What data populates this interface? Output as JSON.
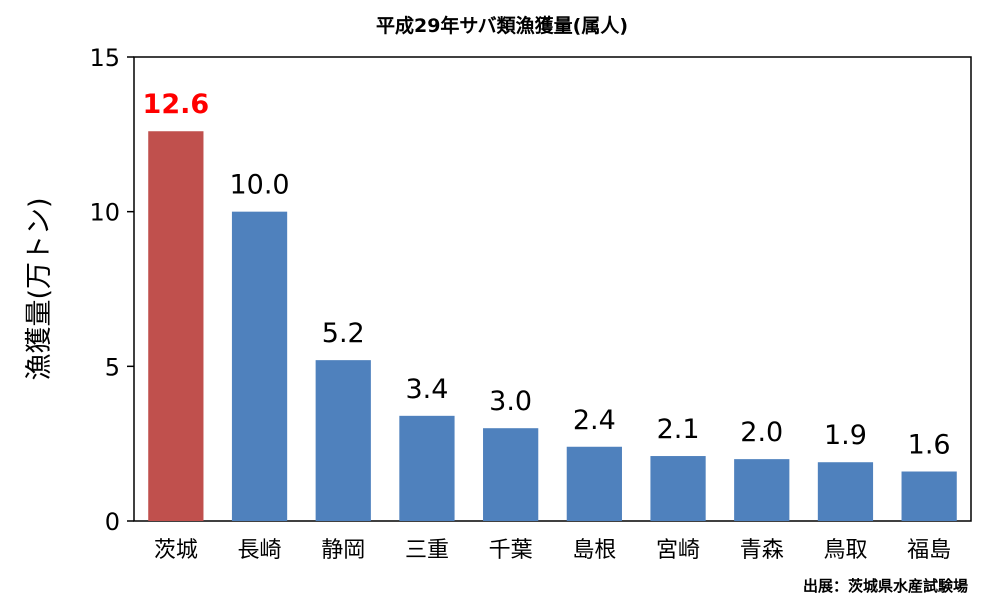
{
  "chart_data": {
    "type": "bar",
    "title": "平成29年サバ類漁獲量(属人)",
    "ylabel": "漁獲量(万トン)",
    "xlabel": "",
    "categories": [
      "茨城",
      "長崎",
      "静岡",
      "三重",
      "千葉",
      "島根",
      "宮崎",
      "青森",
      "鳥取",
      "福島"
    ],
    "values": [
      12.6,
      10.0,
      5.2,
      3.4,
      3.0,
      2.4,
      2.1,
      2.0,
      1.9,
      1.6
    ],
    "value_labels": [
      "12.6",
      "10.0",
      "5.2",
      "3.4",
      "3.0",
      "2.4",
      "2.1",
      "2.0",
      "1.9",
      "1.6"
    ],
    "ylim": [
      0,
      15
    ],
    "yticks": [
      0,
      5,
      10,
      15
    ],
    "grid": false,
    "highlight_index": 0,
    "colors": {
      "bar": "#4f81bd",
      "highlight": "#c0504d",
      "highlight_label": "#ff0000"
    },
    "source": "出展：茨城県水産試験場"
  }
}
